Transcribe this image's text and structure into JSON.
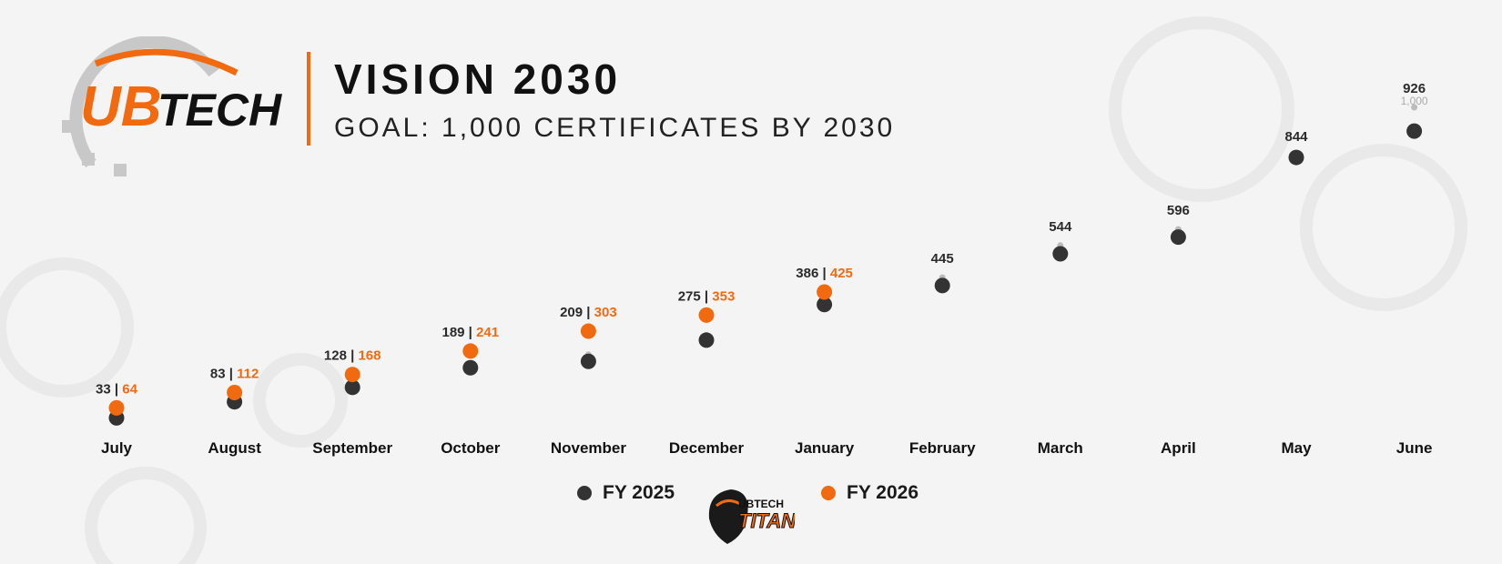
{
  "header": {
    "logo_text_orange": "UB",
    "logo_text_black": "TECH",
    "title": "VISION 2030",
    "subtitle": "GOAL: 1,000 CERTIFICATES BY 2030"
  },
  "colors": {
    "fy2025": "#333333",
    "fy2026": "#f26a10",
    "goal": "#bbbbbb",
    "accent": "#f26a10"
  },
  "legend": {
    "fy2025_label": "FY 2025",
    "fy2026_label": "FY 2026",
    "mascot_text_top": "UBTECH",
    "mascot_text_bottom": "TITANS"
  },
  "chart_data": {
    "type": "scatter",
    "categories": [
      "July",
      "August",
      "September",
      "October",
      "November",
      "December",
      "January",
      "February",
      "March",
      "April",
      "May",
      "June"
    ],
    "series": [
      {
        "name": "FY 2025",
        "values": [
          33,
          83,
          128,
          189,
          209,
          275,
          386,
          445,
          544,
          596,
          844,
          926
        ]
      },
      {
        "name": "FY 2026",
        "values": [
          64,
          112,
          168,
          241,
          303,
          353,
          425,
          null,
          null,
          null,
          null,
          null
        ]
      }
    ],
    "goal_value": 1000,
    "goal_label": "1,000",
    "goal_path": [
      20,
      80,
      130,
      200,
      230,
      290,
      400,
      470,
      570,
      620,
      850,
      1000
    ],
    "data_labels": [
      "33",
      "83",
      "128",
      "189",
      "209",
      "275",
      "386",
      "445",
      "544",
      "596",
      "844",
      "926"
    ],
    "data_labels_fy2026": [
      "64",
      "112",
      "168",
      "241",
      "303",
      "353",
      "425"
    ],
    "label_separator": " | ",
    "ylim": [
      0,
      1000
    ]
  }
}
